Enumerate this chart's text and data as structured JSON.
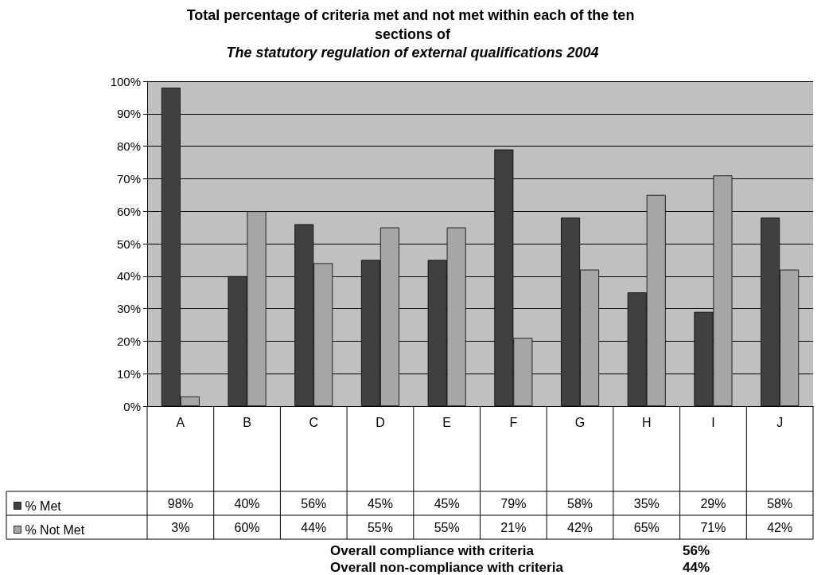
{
  "chart_data": {
    "type": "bar",
    "title": "Total percentage of criteria met and not met within each of the ten sections of",
    "subtitle": "The statutory regulation of external qualifications 2004",
    "categories": [
      "A",
      "B",
      "C",
      "D",
      "E",
      "F",
      "G",
      "H",
      "I",
      "J"
    ],
    "series": [
      {
        "name": "% Met",
        "color": "#404040",
        "values": [
          98,
          40,
          56,
          45,
          45,
          79,
          58,
          35,
          29,
          58
        ],
        "value_labels": [
          "98%",
          "40%",
          "56%",
          "45%",
          "45%",
          "79%",
          "58%",
          "35%",
          "29%",
          "58%"
        ]
      },
      {
        "name": "% Not Met",
        "color": "#a6a6a6",
        "values": [
          3,
          60,
          44,
          55,
          55,
          21,
          42,
          65,
          71,
          42
        ],
        "value_labels": [
          "3%",
          "60%",
          "44%",
          "55%",
          "55%",
          "21%",
          "42%",
          "65%",
          "71%",
          "42%"
        ]
      }
    ],
    "ylim": [
      0,
      100
    ],
    "yticks": [
      {
        "value": 0,
        "label": "0%"
      },
      {
        "value": 10,
        "label": "10%"
      },
      {
        "value": 20,
        "label": "20%"
      },
      {
        "value": 30,
        "label": "30%"
      },
      {
        "value": 40,
        "label": "40%"
      },
      {
        "value": 50,
        "label": "50%"
      },
      {
        "value": 60,
        "label": "60%"
      },
      {
        "value": 70,
        "label": "70%"
      },
      {
        "value": 80,
        "label": "80%"
      },
      {
        "value": 90,
        "label": "90%"
      },
      {
        "value": 100,
        "label": "100%"
      }
    ],
    "grid": "y",
    "legend": "bottom left",
    "annotations": [
      "Overall compliance with criteria",
      "56%",
      "Overall non-compliance with criteria",
      "44%"
    ]
  }
}
